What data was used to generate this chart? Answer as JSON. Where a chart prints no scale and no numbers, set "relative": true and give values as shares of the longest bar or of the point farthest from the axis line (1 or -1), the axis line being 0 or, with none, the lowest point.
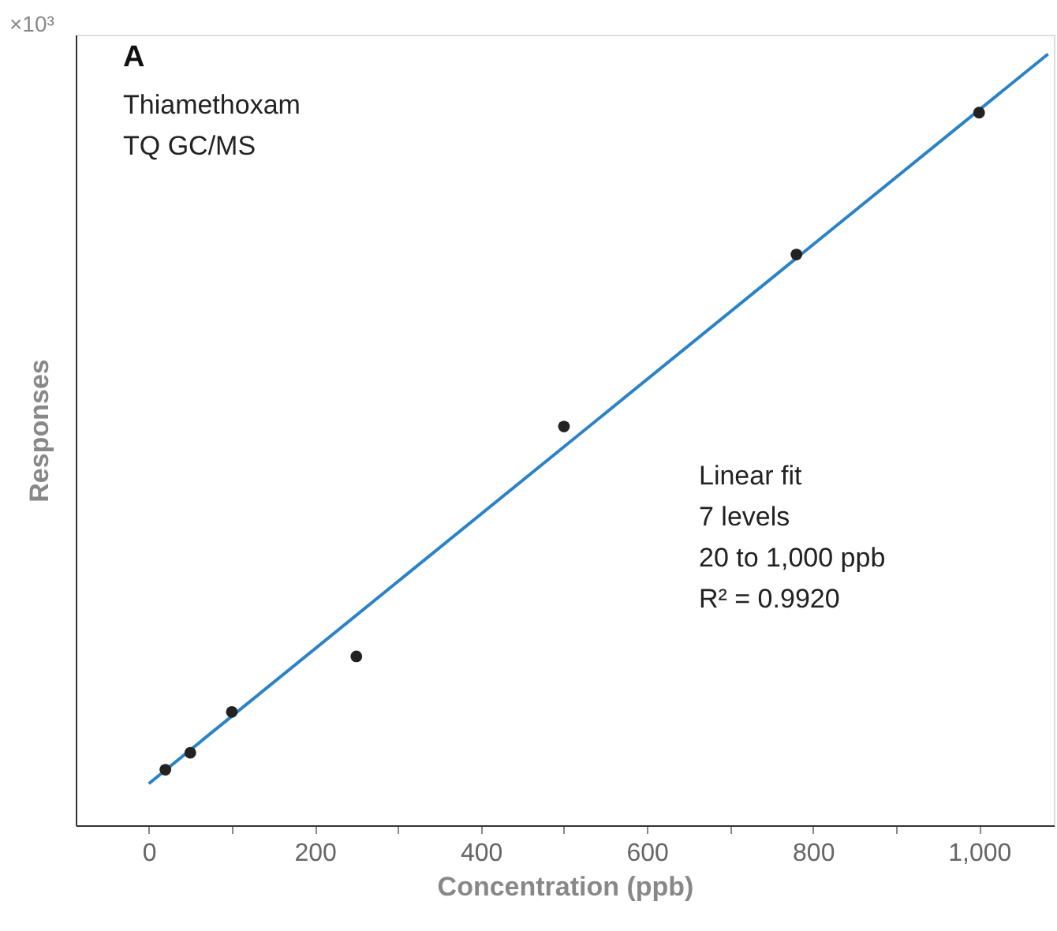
{
  "chart_data": {
    "type": "scatter",
    "relative": true,
    "xlabel": "Concentration (ppb)",
    "ylabel": "Responses",
    "xlim": [
      -88,
      1090
    ],
    "xticks": [
      0,
      {
        "value": 100,
        "label": null
      },
      200,
      {
        "value": 300,
        "label": null
      },
      400,
      {
        "value": 500,
        "label": null
      },
      600,
      {
        "value": 700,
        "label": null
      },
      800,
      {
        "value": 900,
        "label": null
      },
      {
        "value": 1000,
        "label": "1,000"
      }
    ],
    "grid": false,
    "series": [
      {
        "marker": "circle",
        "color": "#222222",
        "x": [
          20,
          50,
          100,
          250,
          500,
          780,
          1000
        ],
        "values": [
          0.072,
          0.094,
          0.147,
          0.219,
          0.517,
          0.74,
          0.924
        ]
      },
      {
        "type": "line",
        "color": "#2b83c6",
        "line_style": "solid",
        "x": [
          0,
          1083
        ],
        "values": [
          0.054,
          1.0
        ]
      }
    ],
    "annotations": [
      "×10³",
      "A",
      "Thiamethoxam",
      "TQ GC/MS",
      "Linear fit",
      "7 levels",
      "20 to 1,000 ppb",
      "R² = 0.9920"
    ]
  }
}
